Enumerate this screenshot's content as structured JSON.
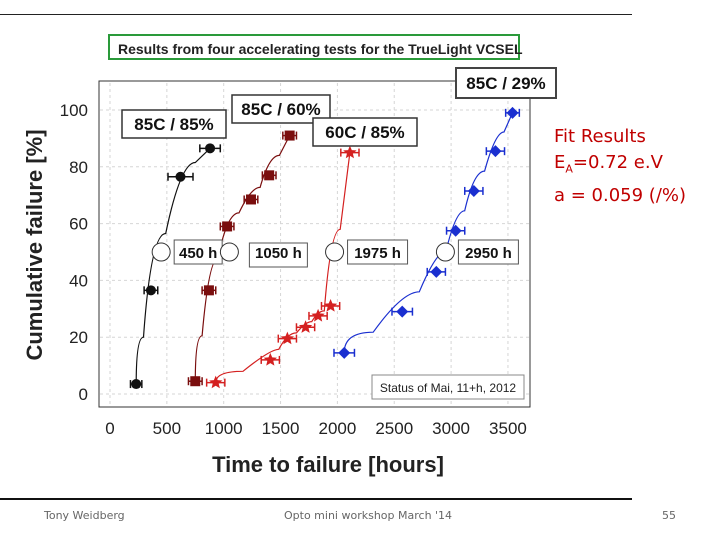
{
  "slide": {
    "title": "Results from four accelerating tests for the TrueLight VCSEL",
    "fit_heading": "Fit Results",
    "fit_ea_prefix": "E",
    "fit_ea_sub": "A",
    "fit_ea_value": "=0.72 e.V",
    "fit_a": "a = 0.059 (/%)",
    "footer_left": "Tony Weidberg",
    "footer_center": "Opto mini workshop March '14",
    "page_number": "55"
  },
  "chart_data": {
    "type": "scatter",
    "xlabel": "Time to failure [hours]",
    "ylabel": "Cumulative failure [%]",
    "xlim": [
      0,
      3600
    ],
    "ylim": [
      0,
      105
    ],
    "xticks": [
      0,
      500,
      1000,
      1500,
      2000,
      2500,
      3000,
      3500
    ],
    "yticks": [
      0,
      20,
      40,
      60,
      80,
      100
    ],
    "grid": true,
    "status_note": "Status of Mai, 11+h, 2012",
    "series": [
      {
        "name": "85C / 85%",
        "color": "#111111",
        "marker": "circle",
        "x": [
          230,
          360,
          620,
          880
        ],
        "y": [
          3.5,
          36.5,
          76.5,
          86.5
        ],
        "xerr": [
          50,
          60,
          110,
          90
        ],
        "median_label": "450 h",
        "median_x": 450,
        "median_y": 50
      },
      {
        "name": "85C / 60%",
        "color": "#7a0e0e",
        "marker": "square",
        "x": [
          750,
          870,
          1030,
          1240,
          1400,
          1580
        ],
        "y": [
          4.5,
          36.5,
          59,
          68.5,
          77,
          91
        ],
        "xerr": [
          60,
          60,
          60,
          60,
          60,
          60
        ],
        "median_label": "1050 h",
        "median_x": 1050,
        "median_y": 50
      },
      {
        "name": "60C / 85%",
        "color": "#d42020",
        "marker": "star",
        "x": [
          930,
          1410,
          1560,
          1720,
          1830,
          1940,
          2110
        ],
        "y": [
          4,
          12,
          19.5,
          23.5,
          27.5,
          31,
          85
        ],
        "xerr": [
          80,
          80,
          80,
          80,
          80,
          80,
          80
        ],
        "median_label": "1975 h",
        "median_x": 1975,
        "median_y": 50
      },
      {
        "name": "85C / 29%",
        "color": "#1a2fd0",
        "marker": "diamond",
        "x": [
          2060,
          2570,
          2870,
          3040,
          3200,
          3390,
          3540
        ],
        "y": [
          14.5,
          29,
          43,
          57.5,
          71.5,
          85.5,
          99
        ],
        "xerr": [
          90,
          90,
          80,
          80,
          80,
          80,
          60
        ],
        "median_label": "2950 h",
        "median_x": 2950,
        "median_y": 50
      }
    ]
  }
}
